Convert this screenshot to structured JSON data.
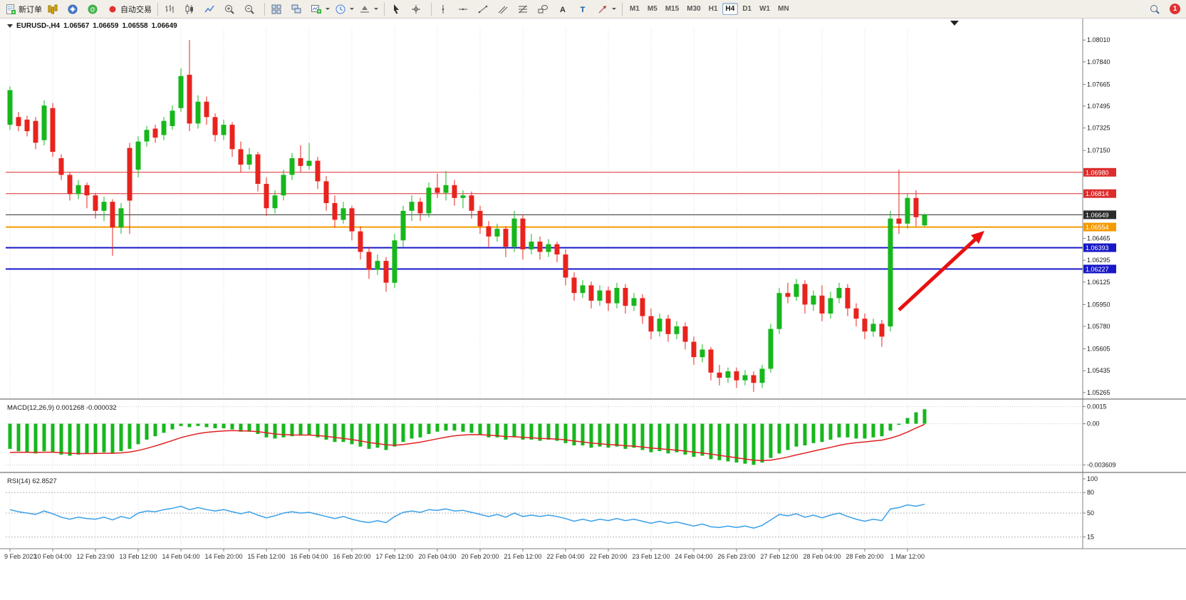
{
  "toolbar": {
    "new_order_label": "新订单",
    "autotrading_label": "自动交易",
    "timeframes": [
      "M1",
      "M5",
      "M15",
      "M30",
      "H1",
      "H4",
      "D1",
      "W1",
      "MN"
    ],
    "active_timeframe": "H4",
    "notification_count": "1",
    "groups": [
      {
        "t": "btn",
        "name": "new-order-button",
        "icon": "new-order-icon",
        "label_key": "new_order_label"
      },
      {
        "t": "btn",
        "name": "market-watch-button",
        "icon": "market-watch-icon"
      },
      {
        "t": "btn",
        "name": "navigator-button",
        "icon": "navigator-icon"
      },
      {
        "t": "btn",
        "name": "terminal-button",
        "icon": "terminal-icon"
      },
      {
        "t": "btn",
        "name": "autotrading-button",
        "icon": "autotrading-icon",
        "label_key": "autotrading_label"
      },
      {
        "t": "sep"
      },
      {
        "t": "btn",
        "name": "bar-chart-button",
        "icon": "bar-chart-icon"
      },
      {
        "t": "btn",
        "name": "candlestick-chart-button",
        "icon": "candlestick-icon"
      },
      {
        "t": "btn",
        "name": "line-chart-button",
        "icon": "line-chart-icon"
      },
      {
        "t": "btn",
        "name": "zoom-in-button",
        "icon": "zoom-in-icon"
      },
      {
        "t": "btn",
        "name": "zoom-out-button",
        "icon": "zoom-out-icon"
      },
      {
        "t": "sep"
      },
      {
        "t": "btn",
        "name": "tile-windows-button",
        "icon": "tile-icon"
      },
      {
        "t": "btn",
        "name": "cascade-windows-button",
        "icon": "cascade-icon"
      },
      {
        "t": "btn",
        "name": "new-chart-button",
        "icon": "new-chart-icon",
        "dd": true
      },
      {
        "t": "btn",
        "name": "auto-scroll-button",
        "icon": "clock-icon",
        "dd": true
      },
      {
        "t": "btn",
        "name": "chart-shift-button",
        "icon": "shift-icon",
        "dd": true
      },
      {
        "t": "sep"
      },
      {
        "t": "btn",
        "name": "cursor-button",
        "icon": "cursor-icon"
      },
      {
        "t": "btn",
        "name": "crosshair-button",
        "icon": "crosshair-icon"
      },
      {
        "t": "sep"
      },
      {
        "t": "btn",
        "name": "vertical-line-button",
        "icon": "vline-icon"
      },
      {
        "t": "btn",
        "name": "horizontal-line-button",
        "icon": "hline-icon"
      },
      {
        "t": "btn",
        "name": "trendline-button",
        "icon": "trendline-icon"
      },
      {
        "t": "btn",
        "name": "channel-button",
        "icon": "channel-icon"
      },
      {
        "t": "btn",
        "name": "fibonacci-button",
        "icon": "fibo-icon"
      },
      {
        "t": "btn",
        "name": "shapes-button",
        "icon": "shapes-icon"
      },
      {
        "t": "btn",
        "name": "text-button",
        "icon": "text-icon"
      },
      {
        "t": "btn",
        "name": "label-button",
        "icon": "label-icon"
      },
      {
        "t": "btn",
        "name": "arrows-button",
        "icon": "arrow-tool-icon",
        "dd": true
      },
      {
        "t": "sep"
      },
      {
        "t": "tf"
      },
      {
        "t": "spacer"
      },
      {
        "t": "btn",
        "name": "search-button",
        "icon": "search-icon"
      },
      {
        "t": "badge",
        "name": "notification-badge"
      }
    ]
  },
  "chart": {
    "title": {
      "symbol": "EURUSD-,H4",
      "open": "1.06567",
      "high": "1.06659",
      "low": "1.06558",
      "close": "1.06649"
    },
    "colors": {
      "bull": "#16b71c",
      "bear": "#e8231d",
      "grid": "#dedede",
      "macd_hist": "#16b71c",
      "macd_signal": "#e02020",
      "rsi_line": "#3aa0e8",
      "axis": "#808080",
      "arrow": "#e81010"
    },
    "price_axis_labels": [
      "1.08010",
      "1.07840",
      "1.07665",
      "1.07495",
      "1.07325",
      "1.07150",
      "1.06465",
      "1.06295",
      "1.06125",
      "1.05950",
      "1.05780",
      "1.05605",
      "1.05435",
      "1.05265"
    ],
    "hlines": [
      {
        "name": "resistance-line-1",
        "label": "1.06980",
        "price": 1.0698,
        "color": "#dd2c2c",
        "w": 1
      },
      {
        "name": "resistance-line-2",
        "label": "1.06814",
        "price": 1.06814,
        "color": "#dd2c2c",
        "w": 1
      },
      {
        "name": "bid-price-line",
        "label": "1.06649",
        "price": 1.06649,
        "color": "#2b2b2b",
        "w": 1
      },
      {
        "name": "support-line-orange",
        "label": "1.06554",
        "price": 1.06554,
        "color": "#f59a00",
        "w": 2
      },
      {
        "name": "support-line-blue-1",
        "label": "1.06393",
        "price": 1.06393,
        "color": "#1818c8",
        "w": 2
      },
      {
        "name": "support-line-blue-2",
        "label": "1.06227",
        "price": 1.06227,
        "color": "#1818c8",
        "w": 2
      }
    ],
    "time_axis": [
      "9 Feb 2023",
      "10 Feb 04:00",
      "12 Feb 23:00",
      "13 Feb 12:00",
      "14 Feb 04:00",
      "14 Feb 20:00",
      "15 Feb 12:00",
      "16 Feb 04:00",
      "16 Feb 20:00",
      "17 Feb 12:00",
      "20 Feb 04:00",
      "20 Feb 20:00",
      "21 Feb 12:00",
      "22 Feb 04:00",
      "22 Feb 20:00",
      "23 Feb 12:00",
      "24 Feb 04:00",
      "26 Feb 23:00",
      "27 Feb 12:00",
      "28 Feb 04:00",
      "28 Feb 20:00",
      "1 Mar 12:00"
    ]
  },
  "chart_data": {
    "type": "candlestick",
    "symbol": "EURUSD",
    "period": "H4",
    "ohlc": [
      [
        1.0735,
        1.0765,
        1.0731,
        1.0762
      ],
      [
        1.0741,
        1.0745,
        1.073,
        1.0734
      ],
      [
        1.0739,
        1.0742,
        1.0726,
        1.073
      ],
      [
        1.0738,
        1.0741,
        1.0716,
        1.0721
      ],
      [
        1.0723,
        1.0754,
        1.0719,
        1.075
      ],
      [
        1.0748,
        1.0752,
        1.071,
        1.0714
      ],
      [
        1.0709,
        1.0712,
        1.0692,
        1.0696
      ],
      [
        1.0696,
        1.0698,
        1.0676,
        1.0681
      ],
      [
        1.0681,
        1.0692,
        1.0677,
        1.0688
      ],
      [
        1.0688,
        1.069,
        1.067,
        1.068
      ],
      [
        1.068,
        1.0682,
        1.0662,
        1.0668
      ],
      [
        1.0668,
        1.0679,
        1.066,
        1.0675
      ],
      [
        1.0675,
        1.0677,
        1.0633,
        1.0655
      ],
      [
        1.0655,
        1.0674,
        1.065,
        1.067
      ],
      [
        1.0717,
        1.0721,
        1.065,
        1.0676
      ],
      [
        1.07,
        1.0726,
        1.0694,
        1.0722
      ],
      [
        1.0722,
        1.0734,
        1.0718,
        1.0731
      ],
      [
        1.0732,
        1.0735,
        1.0721,
        1.0725
      ],
      [
        1.0727,
        1.0741,
        1.0723,
        1.0738
      ],
      [
        1.0734,
        1.075,
        1.0731,
        1.0746
      ],
      [
        1.0748,
        1.0779,
        1.0745,
        1.0773
      ],
      [
        1.0774,
        1.0801,
        1.073,
        1.0736
      ],
      [
        1.0736,
        1.0758,
        1.0732,
        1.0753
      ],
      [
        1.0753,
        1.0757,
        1.0735,
        1.0741
      ],
      [
        1.0741,
        1.0744,
        1.0722,
        1.0727
      ],
      [
        1.0727,
        1.0739,
        1.0723,
        1.0735
      ],
      [
        1.0735,
        1.0737,
        1.071,
        1.0716
      ],
      [
        1.0716,
        1.0722,
        1.0698,
        1.0704
      ],
      [
        1.0704,
        1.0717,
        1.07,
        1.0712
      ],
      [
        1.0712,
        1.0714,
        1.0683,
        1.0689
      ],
      [
        1.0689,
        1.0694,
        1.0664,
        1.067
      ],
      [
        1.067,
        1.0684,
        1.0666,
        1.068
      ],
      [
        1.068,
        1.07,
        1.0676,
        1.0696
      ],
      [
        1.0696,
        1.0713,
        1.0692,
        1.0709
      ],
      [
        1.0709,
        1.0719,
        1.0698,
        1.0703
      ],
      [
        1.0703,
        1.0721,
        1.07,
        1.0707
      ],
      [
        1.0707,
        1.071,
        1.0685,
        1.0691
      ],
      [
        1.0691,
        1.0695,
        1.0668,
        1.0674
      ],
      [
        1.0674,
        1.068,
        1.0655,
        1.0661
      ],
      [
        1.0661,
        1.0675,
        1.0658,
        1.067
      ],
      [
        1.067,
        1.0672,
        1.0645,
        1.0652
      ],
      [
        1.0652,
        1.0656,
        1.063,
        1.0636
      ],
      [
        1.0636,
        1.064,
        1.0615,
        1.0622
      ],
      [
        1.0622,
        1.0634,
        1.0618,
        1.0629
      ],
      [
        1.0629,
        1.0632,
        1.0605,
        1.0612
      ],
      [
        1.0612,
        1.065,
        1.0608,
        1.0645
      ],
      [
        1.0645,
        1.0672,
        1.064,
        1.0668
      ],
      [
        1.0668,
        1.068,
        1.066,
        1.0675
      ],
      [
        1.0675,
        1.0678,
        1.066,
        1.0666
      ],
      [
        1.0666,
        1.069,
        1.0663,
        1.0686
      ],
      [
        1.0686,
        1.0697,
        1.0678,
        1.0682
      ],
      [
        1.0682,
        1.0699,
        1.0676,
        1.0688
      ],
      [
        1.0688,
        1.0692,
        1.0672,
        1.0678
      ],
      [
        1.0678,
        1.0684,
        1.067,
        1.068
      ],
      [
        1.068,
        1.0683,
        1.0662,
        1.0668
      ],
      [
        1.0668,
        1.0672,
        1.065,
        1.0656
      ],
      [
        1.0656,
        1.066,
        1.064,
        1.0648
      ],
      [
        1.0648,
        1.0658,
        1.0644,
        1.0654
      ],
      [
        1.0654,
        1.0656,
        1.0632,
        1.064
      ],
      [
        1.064,
        1.0668,
        1.0636,
        1.0662
      ],
      [
        1.0662,
        1.0665,
        1.063,
        1.0638
      ],
      [
        1.0638,
        1.065,
        1.0634,
        1.0644
      ],
      [
        1.0644,
        1.0648,
        1.063,
        1.0636
      ],
      [
        1.0636,
        1.0646,
        1.0632,
        1.0642
      ],
      [
        1.0642,
        1.0644,
        1.0628,
        1.0634
      ],
      [
        1.0634,
        1.0638,
        1.061,
        1.0616
      ],
      [
        1.0616,
        1.062,
        1.0598,
        1.0604
      ],
      [
        1.0604,
        1.0614,
        1.06,
        1.061
      ],
      [
        1.061,
        1.0613,
        1.0592,
        1.0598
      ],
      [
        1.0598,
        1.061,
        1.0594,
        1.0606
      ],
      [
        1.0606,
        1.0609,
        1.059,
        1.0596
      ],
      [
        1.0596,
        1.0612,
        1.0592,
        1.0608
      ],
      [
        1.0608,
        1.0611,
        1.0588,
        1.0594
      ],
      [
        1.0594,
        1.0604,
        1.059,
        1.06
      ],
      [
        1.06,
        1.0603,
        1.058,
        1.0586
      ],
      [
        1.0586,
        1.0592,
        1.0568,
        1.0574
      ],
      [
        1.0574,
        1.0588,
        1.057,
        1.0584
      ],
      [
        1.0584,
        1.0587,
        1.0566,
        1.0572
      ],
      [
        1.0572,
        1.0582,
        1.0568,
        1.0578
      ],
      [
        1.0578,
        1.0581,
        1.056,
        1.0566
      ],
      [
        1.0566,
        1.057,
        1.0548,
        1.0554
      ],
      [
        1.0554,
        1.0564,
        1.055,
        1.056
      ],
      [
        1.056,
        1.0562,
        1.0536,
        1.0542
      ],
      [
        1.0542,
        1.0548,
        1.0532,
        1.0538
      ],
      [
        1.0538,
        1.0546,
        1.0534,
        1.0543
      ],
      [
        1.0543,
        1.0546,
        1.053,
        1.0536
      ],
      [
        1.0536,
        1.0544,
        1.0532,
        1.054
      ],
      [
        1.054,
        1.0543,
        1.0527,
        1.0534
      ],
      [
        1.0534,
        1.0548,
        1.053,
        1.0545
      ],
      [
        1.0545,
        1.058,
        1.0542,
        1.0576
      ],
      [
        1.0576,
        1.0608,
        1.0572,
        1.0604
      ],
      [
        1.0604,
        1.0612,
        1.0596,
        1.0601
      ],
      [
        1.0601,
        1.0615,
        1.0598,
        1.0611
      ],
      [
        1.0611,
        1.0614,
        1.0588,
        1.0595
      ],
      [
        1.0595,
        1.0606,
        1.059,
        1.0602
      ],
      [
        1.0602,
        1.061,
        1.0582,
        1.0588
      ],
      [
        1.0588,
        1.0605,
        1.0584,
        1.06
      ],
      [
        1.06,
        1.0612,
        1.0596,
        1.0608
      ],
      [
        1.0608,
        1.0611,
        1.0586,
        1.0592
      ],
      [
        1.0592,
        1.0596,
        1.0578,
        1.0584
      ],
      [
        1.0584,
        1.0588,
        1.0568,
        1.0574
      ],
      [
        1.0574,
        1.0584,
        1.057,
        1.058
      ],
      [
        1.058,
        1.0583,
        1.0562,
        1.057
      ],
      [
        1.0578,
        1.0668,
        1.0574,
        1.0662
      ],
      [
        1.0662,
        1.07,
        1.065,
        1.0658
      ],
      [
        1.0658,
        1.0682,
        1.0654,
        1.0678
      ],
      [
        1.0678,
        1.0684,
        1.0656,
        1.0663
      ],
      [
        1.06567,
        1.06659,
        1.06558,
        1.06649
      ]
    ],
    "macd": {
      "label": "MACD(12,26,9)",
      "values": [
        "0.001268",
        "-0.000032"
      ],
      "scale_labels": [
        {
          "text": "0.0015",
          "v": 0.0015
        },
        {
          "text": "0.00",
          "v": 0
        },
        {
          "text": "-0.003609",
          "v": -0.003609
        }
      ],
      "histogram": [
        -0.0022,
        -0.0024,
        -0.0025,
        -0.0026,
        -0.0024,
        -0.0025,
        -0.0027,
        -0.0028,
        -0.0027,
        -0.0026,
        -0.0026,
        -0.0025,
        -0.0026,
        -0.0024,
        -0.0022,
        -0.0018,
        -0.0014,
        -0.0011,
        -0.0008,
        -0.0005,
        -0.0002,
        -0.0003,
        -0.0002,
        -0.0003,
        -0.0004,
        -0.0004,
        -0.0005,
        -0.0007,
        -0.0007,
        -0.0009,
        -0.0012,
        -0.0013,
        -0.0012,
        -0.0011,
        -0.001,
        -0.001,
        -0.0012,
        -0.0014,
        -0.0016,
        -0.0016,
        -0.0018,
        -0.002,
        -0.0022,
        -0.0021,
        -0.0023,
        -0.002,
        -0.0016,
        -0.0013,
        -0.0012,
        -0.0009,
        -0.0007,
        -0.0006,
        -0.0006,
        -0.0007,
        -0.0008,
        -0.001,
        -0.0012,
        -0.0012,
        -0.0014,
        -0.0012,
        -0.0014,
        -0.0014,
        -0.0015,
        -0.0014,
        -0.0015,
        -0.0017,
        -0.0019,
        -0.0019,
        -0.0021,
        -0.002,
        -0.0021,
        -0.002,
        -0.0022,
        -0.0021,
        -0.0023,
        -0.0025,
        -0.0024,
        -0.0026,
        -0.0025,
        -0.0027,
        -0.0029,
        -0.0028,
        -0.0031,
        -0.0032,
        -0.0033,
        -0.0034,
        -0.0035,
        -0.0036,
        -0.0034,
        -0.003,
        -0.0026,
        -0.0023,
        -0.002,
        -0.0019,
        -0.0017,
        -0.0016,
        -0.0014,
        -0.0012,
        -0.0012,
        -0.0013,
        -0.0013,
        -0.0012,
        -0.0011,
        -0.0006,
        -0.0001,
        0.0005,
        0.001,
        0.001268
      ]
    },
    "rsi": {
      "label": "RSI(14)",
      "value": "62.8527",
      "scale_labels": [
        100,
        80,
        50,
        15
      ],
      "dashed_levels": [
        80,
        50,
        15
      ],
      "values": [
        55,
        52,
        50,
        48,
        53,
        49,
        44,
        41,
        44,
        42,
        41,
        44,
        40,
        45,
        42,
        50,
        53,
        52,
        55,
        57,
        60,
        55,
        58,
        55,
        53,
        55,
        52,
        49,
        52,
        47,
        43,
        46,
        50,
        52,
        50,
        51,
        48,
        45,
        42,
        45,
        41,
        38,
        36,
        39,
        36,
        45,
        51,
        53,
        51,
        55,
        54,
        56,
        53,
        54,
        51,
        48,
        45,
        48,
        44,
        50,
        45,
        47,
        45,
        47,
        45,
        42,
        38,
        41,
        38,
        41,
        39,
        42,
        39,
        41,
        38,
        35,
        38,
        35,
        37,
        34,
        31,
        34,
        30,
        29,
        31,
        29,
        31,
        28,
        32,
        40,
        48,
        46,
        49,
        44,
        47,
        43,
        47,
        50,
        45,
        41,
        38,
        41,
        39,
        56,
        58,
        62,
        60,
        62.85
      ]
    }
  }
}
